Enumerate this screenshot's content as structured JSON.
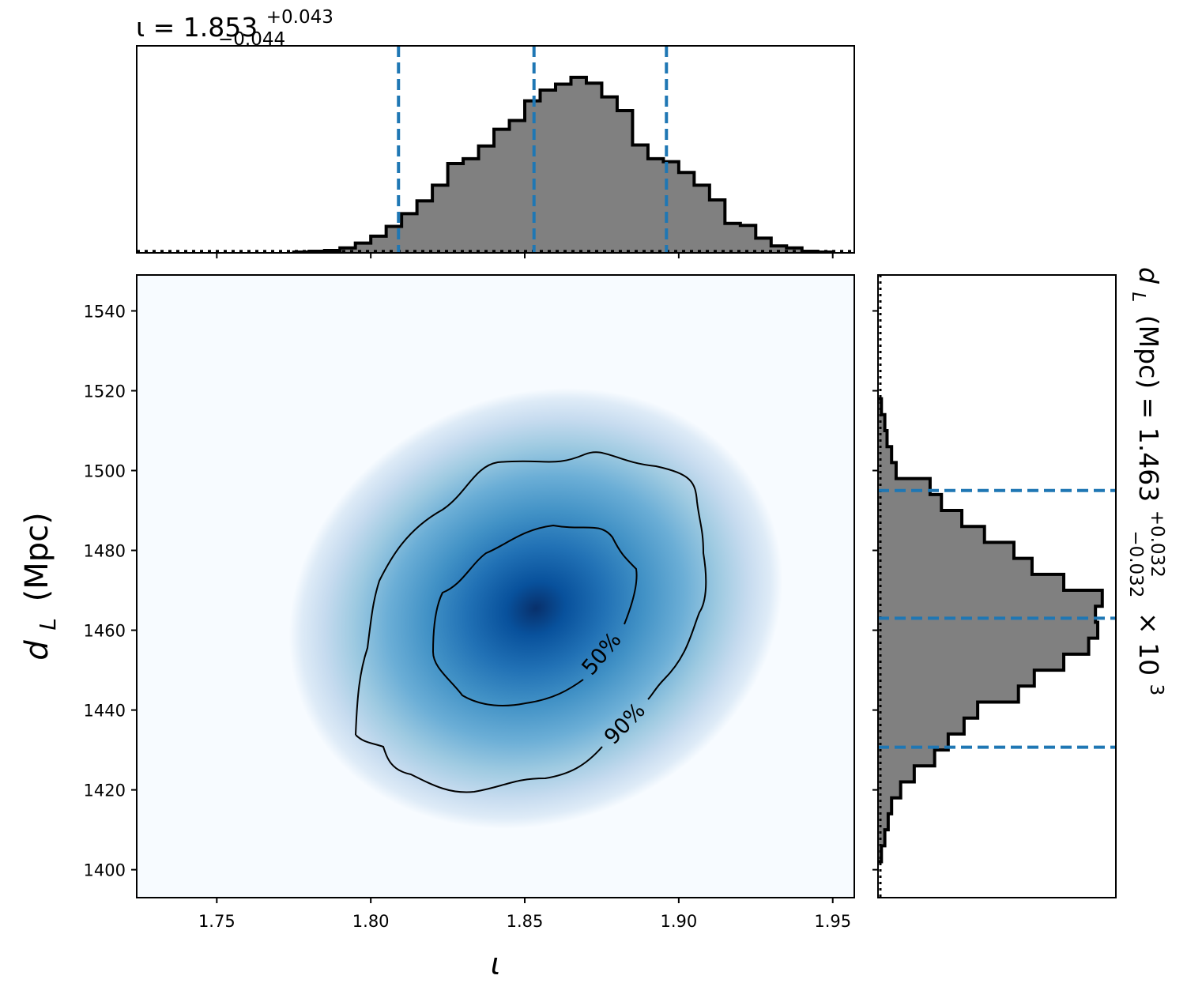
{
  "chart_data": {
    "type": "corner",
    "parameters": [
      "ι",
      "d_L"
    ],
    "marginal_top": {
      "type": "histogram",
      "param": "ι",
      "title_base": "ι = 1.853",
      "title_sup": "+0.043",
      "title_sub": "−0.044",
      "xlim": [
        1.724,
        1.957
      ],
      "median": 1.853,
      "lower": 1.809,
      "upper": 1.896,
      "bins": [
        [
          1.775,
          0.004
        ],
        [
          1.78,
          0.008
        ],
        [
          1.785,
          0.012
        ],
        [
          1.79,
          0.025
        ],
        [
          1.795,
          0.05
        ],
        [
          1.8,
          0.085
        ],
        [
          1.805,
          0.135
        ],
        [
          1.81,
          0.2
        ],
        [
          1.815,
          0.265
        ],
        [
          1.82,
          0.345
        ],
        [
          1.825,
          0.455
        ],
        [
          1.83,
          0.48
        ],
        [
          1.835,
          0.545
        ],
        [
          1.84,
          0.63
        ],
        [
          1.845,
          0.675
        ],
        [
          1.85,
          0.775
        ],
        [
          1.855,
          0.83
        ],
        [
          1.86,
          0.86
        ],
        [
          1.865,
          0.895
        ],
        [
          1.87,
          0.865
        ],
        [
          1.875,
          0.795
        ],
        [
          1.88,
          0.725
        ],
        [
          1.885,
          0.55
        ],
        [
          1.89,
          0.48
        ],
        [
          1.895,
          0.465
        ],
        [
          1.9,
          0.41
        ],
        [
          1.905,
          0.345
        ],
        [
          1.91,
          0.27
        ],
        [
          1.915,
          0.15
        ],
        [
          1.92,
          0.14
        ],
        [
          1.925,
          0.075
        ],
        [
          1.93,
          0.035
        ],
        [
          1.935,
          0.025
        ],
        [
          1.94,
          0.008
        ],
        [
          1.945,
          0.004
        ]
      ],
      "bin_width": 0.005,
      "prior_level": 0.03
    },
    "joint": {
      "type": "heatmap",
      "xlabel": "ι",
      "ylabel": "d",
      "ylabel_sub": "L",
      "ylabel_unit": "(Mpc)",
      "xlim": [
        1.724,
        1.957
      ],
      "ylim": [
        1393,
        1549
      ],
      "x_ticks": [
        1.75,
        1.8,
        1.85,
        1.9,
        1.95
      ],
      "x_tick_labels": [
        "1.75",
        "1.80",
        "1.85",
        "1.90",
        "1.95"
      ],
      "y_ticks": [
        1400,
        1420,
        1440,
        1460,
        1480,
        1500,
        1520,
        1540
      ],
      "y_tick_labels": [
        "1400",
        "1420",
        "1440",
        "1460",
        "1480",
        "1500",
        "1520",
        "1540"
      ],
      "peak": [
        1.8535,
        1465.5
      ],
      "sigma_x": 0.0265,
      "sigma_y": 19.5,
      "correlation": 0.42,
      "colormap": "Blues",
      "contour_labels": [
        "50%",
        "90%"
      ]
    },
    "marginal_right": {
      "type": "histogram",
      "param": "d_L",
      "title_text": "d",
      "title_sub": "L",
      "title_unit": "(Mpc) = 1.463",
      "title_range_sup": "+0.032",
      "title_range_sub": "−0.032",
      "title_scale": "× 10",
      "title_exp": "3",
      "ylim": [
        1393,
        1549
      ],
      "median": 1463,
      "lower": 1430.7,
      "upper": 1495,
      "bins": [
        [
          1402,
          0.015
        ],
        [
          1406,
          0.03
        ],
        [
          1410,
          0.045
        ],
        [
          1414,
          0.06
        ],
        [
          1418,
          0.1
        ],
        [
          1422,
          0.16
        ],
        [
          1426,
          0.25
        ],
        [
          1430,
          0.31
        ],
        [
          1434,
          0.38
        ],
        [
          1438,
          0.44
        ],
        [
          1442,
          0.62
        ],
        [
          1446,
          0.69
        ],
        [
          1450,
          0.82
        ],
        [
          1454,
          0.93
        ],
        [
          1458,
          0.97
        ],
        [
          1462,
          0.96
        ],
        [
          1466,
          0.99
        ],
        [
          1470,
          0.82
        ],
        [
          1474,
          0.68
        ],
        [
          1478,
          0.6
        ],
        [
          1482,
          0.47
        ],
        [
          1486,
          0.37
        ],
        [
          1490,
          0.28
        ],
        [
          1494,
          0.23
        ],
        [
          1498,
          0.08
        ],
        [
          1502,
          0.06
        ],
        [
          1506,
          0.04
        ],
        [
          1510,
          0.03
        ],
        [
          1514,
          0.015
        ]
      ],
      "bin_width": 4,
      "prior_level": 0.01
    },
    "colors": {
      "hist_fill": "#808080",
      "hist_edge": "#000000",
      "quantile_line": "#1f77b4",
      "prior_line": "#000000"
    }
  }
}
